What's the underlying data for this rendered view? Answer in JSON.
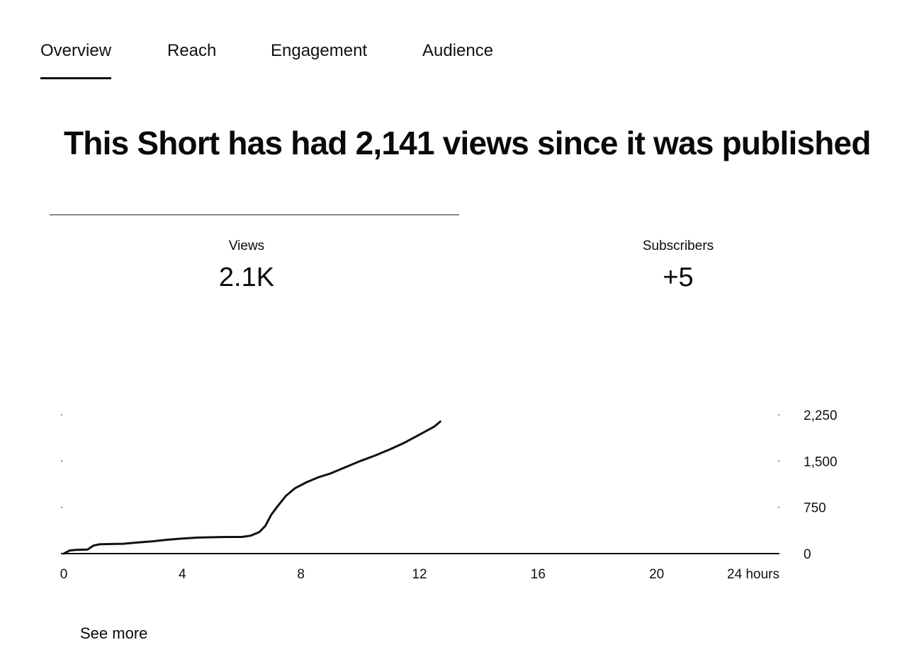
{
  "tabs": [
    {
      "label": "Overview",
      "active": true
    },
    {
      "label": "Reach",
      "active": false
    },
    {
      "label": "Engagement",
      "active": false
    },
    {
      "label": "Audience",
      "active": false
    }
  ],
  "headline": "This Short has had 2,141 views since it was published",
  "metrics": {
    "views": {
      "label": "Views",
      "value": "2.1K"
    },
    "subscribers": {
      "label": "Subscribers",
      "value": "+5"
    }
  },
  "see_more_label": "See more",
  "chart_data": {
    "type": "line",
    "title": "",
    "xlabel": "",
    "ylabel": "",
    "x_ticks": [
      "0",
      "4",
      "8",
      "12",
      "16",
      "20",
      "24 hours"
    ],
    "y_ticks": [
      "0",
      "750",
      "1,500",
      "2,250"
    ],
    "xlim": [
      0,
      24
    ],
    "ylim": [
      0,
      2250
    ],
    "grid": false,
    "series": [
      {
        "name": "",
        "x": [
          0,
          0.2,
          0.4,
          0.8,
          1.0,
          1.2,
          1.5,
          2.0,
          2.5,
          3.0,
          3.5,
          4.0,
          4.5,
          5.0,
          5.5,
          6.0,
          6.3,
          6.6,
          6.8,
          7.0,
          7.2,
          7.5,
          7.8,
          8.2,
          8.6,
          9.0,
          9.5,
          10.0,
          10.5,
          11.0,
          11.5,
          12.0,
          12.5,
          12.7
        ],
        "y": [
          0,
          50,
          60,
          65,
          130,
          150,
          155,
          160,
          180,
          200,
          225,
          245,
          260,
          265,
          270,
          270,
          290,
          350,
          450,
          630,
          760,
          940,
          1060,
          1160,
          1240,
          1300,
          1400,
          1500,
          1590,
          1690,
          1800,
          1930,
          2060,
          2141
        ]
      }
    ]
  }
}
